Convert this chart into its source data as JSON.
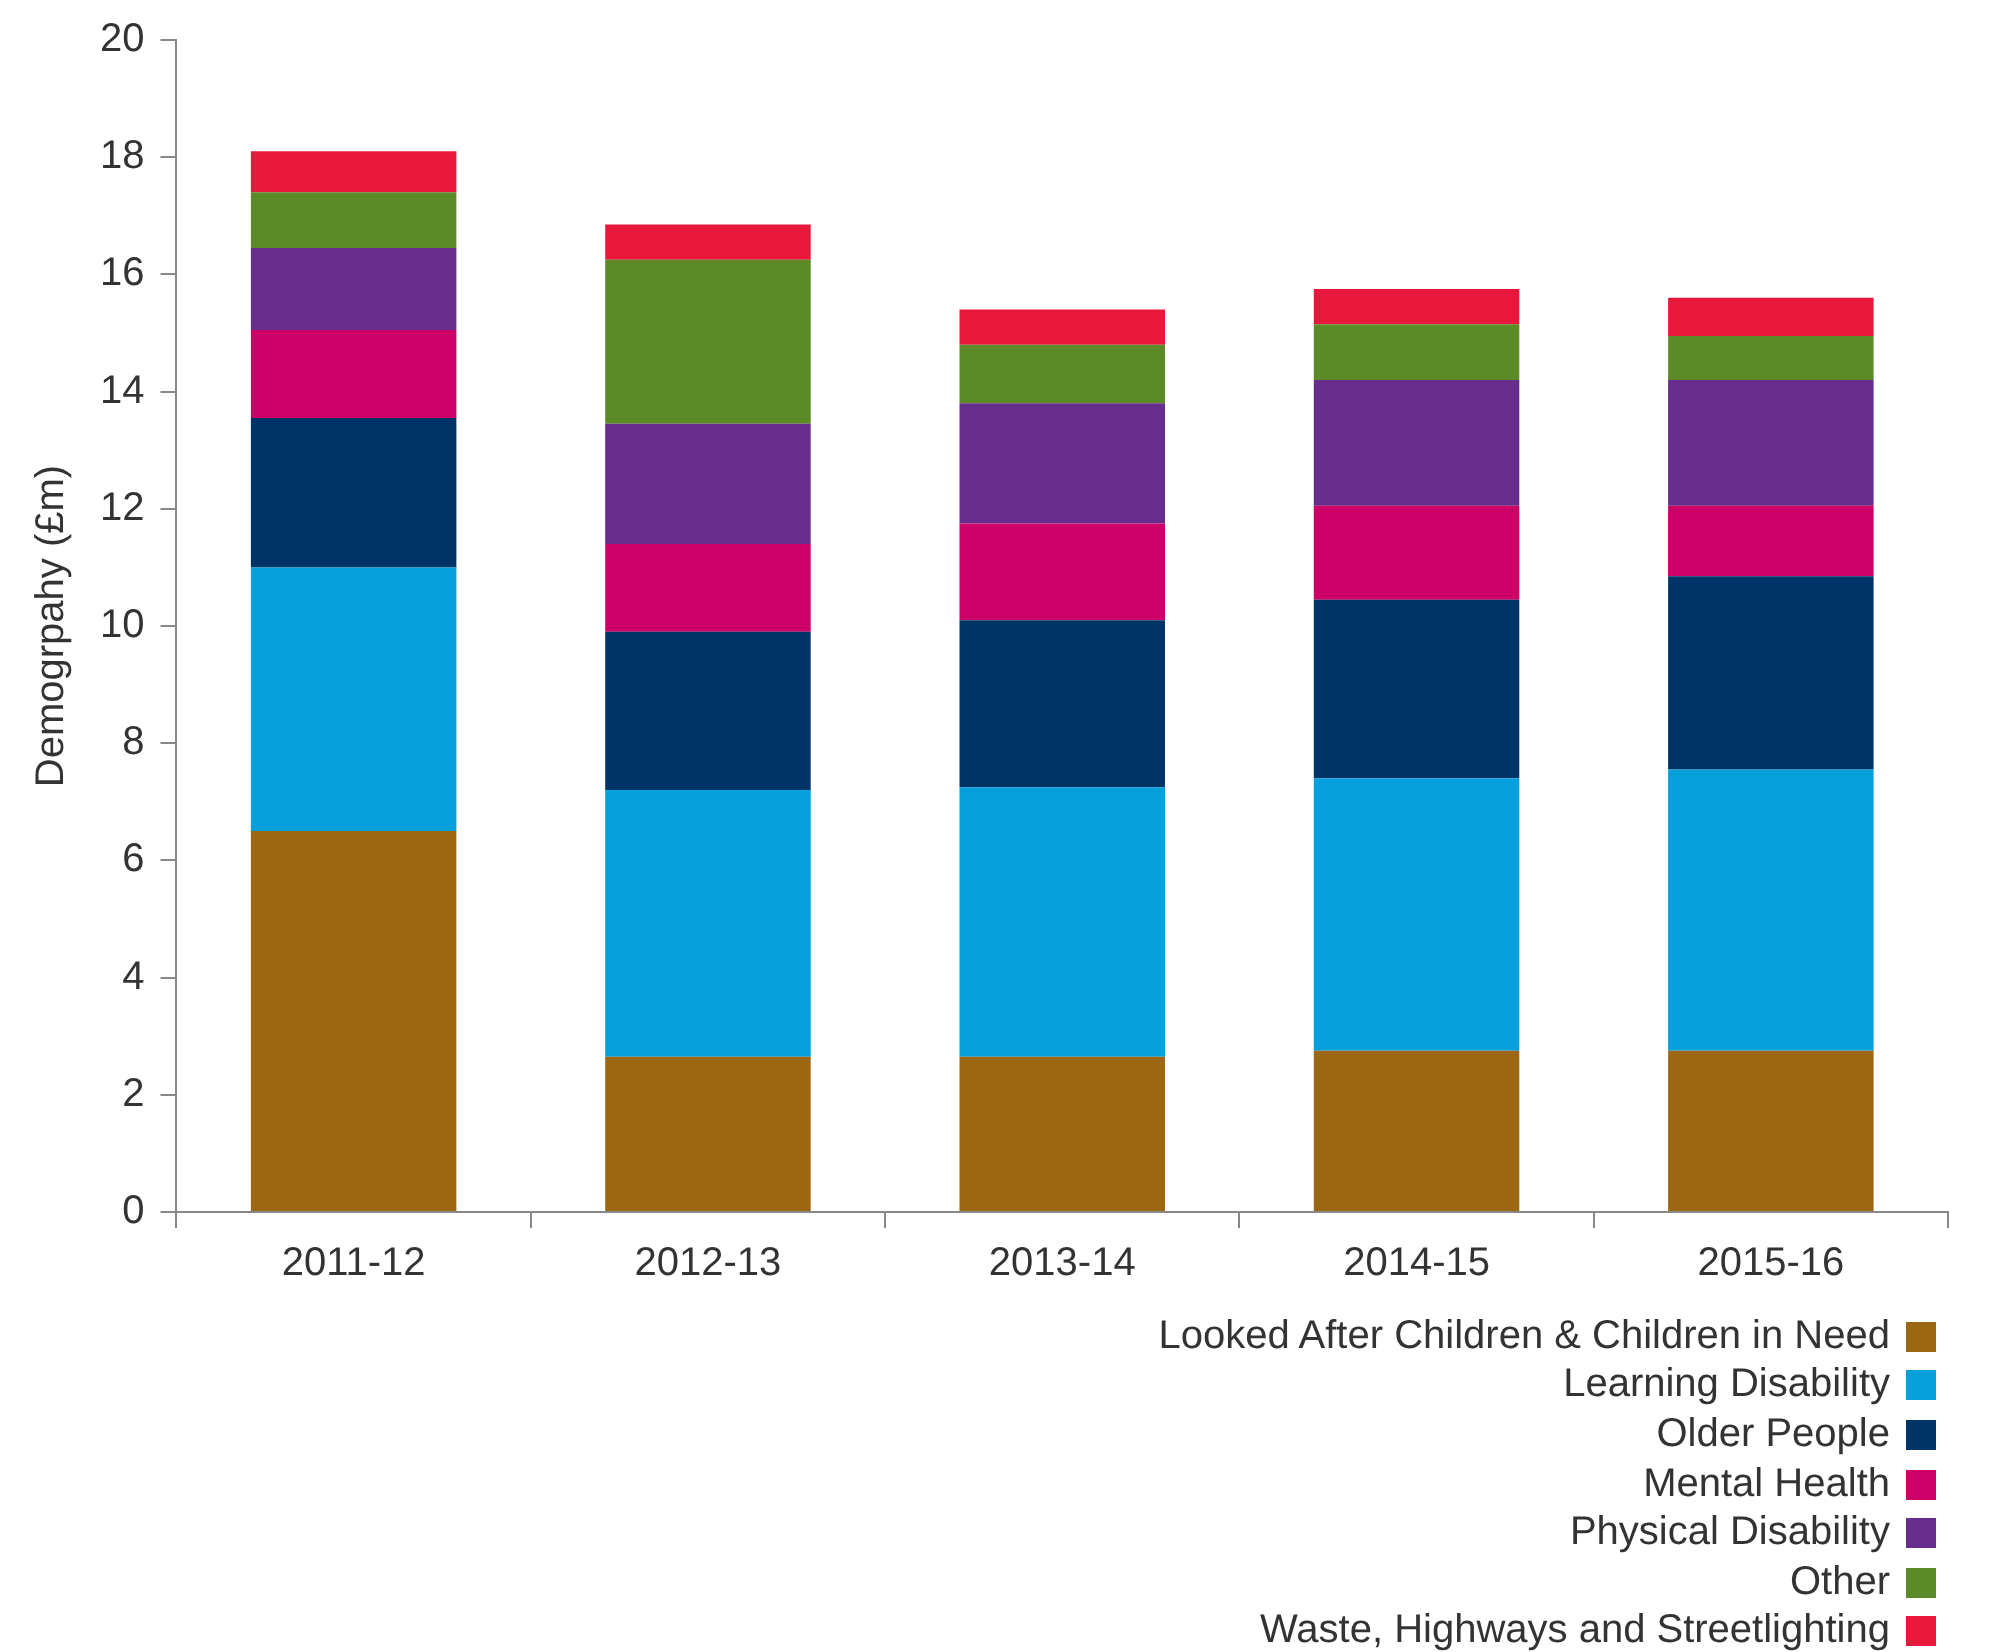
{
  "chart_data": {
    "type": "bar",
    "stacked": true,
    "ylabel": "Demogrpahy (£m)",
    "categories": [
      "2011-12",
      "2012-13",
      "2013-14",
      "2014-15",
      "2015-16"
    ],
    "ylim": [
      0,
      20
    ],
    "yticks": [
      0,
      2,
      4,
      6,
      8,
      10,
      12,
      14,
      16,
      18,
      20
    ],
    "grid": false,
    "legend": "bottom right",
    "series": [
      {
        "name": "Looked After Children & Children in Need",
        "color": "#9c6713",
        "values": [
          6.5,
          2.65,
          2.65,
          2.75,
          2.75
        ]
      },
      {
        "name": "Learning Disability",
        "color": "#059fdc",
        "values": [
          4.5,
          4.55,
          4.6,
          4.65,
          4.8
        ]
      },
      {
        "name": "Older People",
        "color": "#003366",
        "values": [
          2.55,
          2.7,
          2.85,
          3.05,
          3.3
        ]
      },
      {
        "name": "Mental Health",
        "color": "#cc0066",
        "values": [
          1.5,
          1.5,
          1.65,
          1.6,
          1.2
        ]
      },
      {
        "name": "Physical Disability",
        "color": "#662d8c",
        "values": [
          1.4,
          2.05,
          2.05,
          2.15,
          2.15
        ]
      },
      {
        "name": "Other",
        "color": "#5c8a29",
        "values": [
          0.95,
          2.8,
          1.0,
          0.95,
          0.75
        ]
      },
      {
        "name": "Waste, Highways and Streetlighting",
        "color": "#e8173c",
        "values": [
          0.7,
          0.6,
          0.6,
          0.6,
          0.65
        ]
      }
    ]
  }
}
